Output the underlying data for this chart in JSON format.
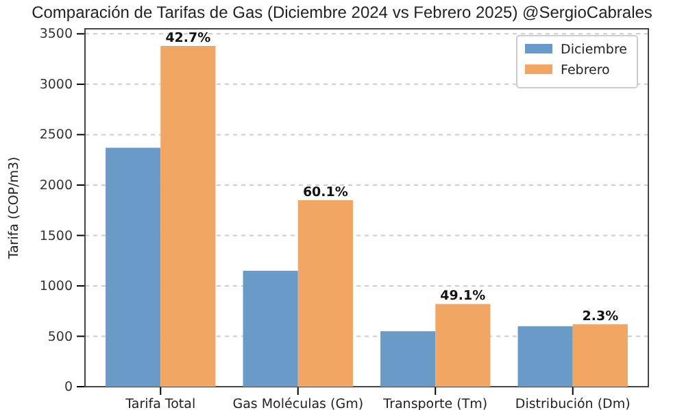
{
  "chart_data": {
    "type": "bar",
    "title": "Comparación de Tarifas de Gas (Diciembre 2024 vs Febrero 2025) @SergioCabrales",
    "ylabel": "Tarifa (COP/m3)",
    "categories": [
      "Tarifa Total",
      "Gas Moléculas (Gm)",
      "Transporte (Tm)",
      "Distribución (Dm)"
    ],
    "series": [
      {
        "name": "Diciembre",
        "color": "#6a9bc8",
        "values": [
          2370,
          1150,
          550,
          600
        ]
      },
      {
        "name": "Febrero",
        "color": "#f2a664",
        "values": [
          3380,
          1850,
          820,
          620
        ]
      }
    ],
    "annotations": [
      {
        "text": "42.7%",
        "x": "Tarifa Total",
        "y": 3380
      },
      {
        "text": "60.1%",
        "x": "Gas Moléculas (Gm)",
        "y": 1850
      },
      {
        "text": "49.1%",
        "x": "Transporte (Tm)",
        "y": 820
      },
      {
        "text": "2.3%",
        "x": "Distribución (Dm)",
        "y": 620
      }
    ],
    "ylim": [
      0,
      3550
    ],
    "yticks": [
      0,
      500,
      1000,
      1500,
      2000,
      2500,
      3000,
      3500
    ],
    "grid": "y",
    "legend": "top right"
  }
}
